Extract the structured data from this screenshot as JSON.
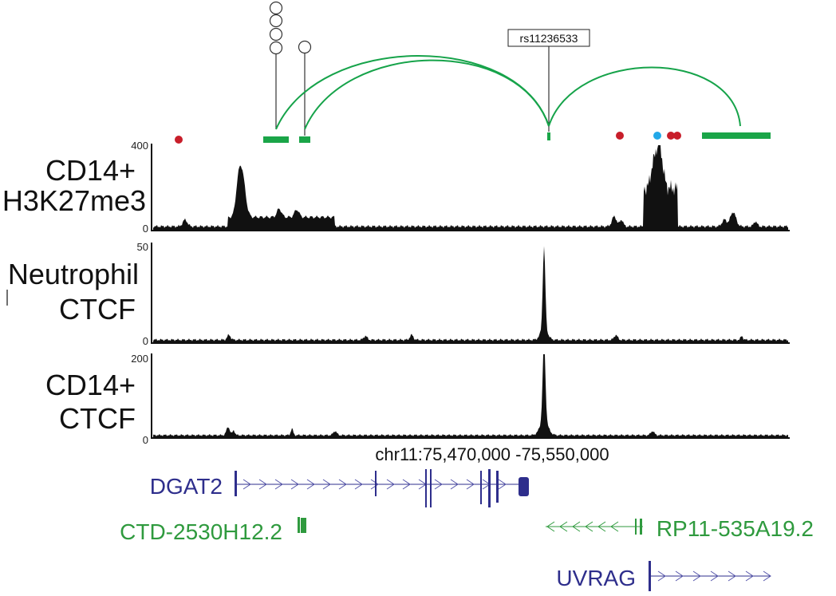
{
  "colors": {
    "loop": "#16a34a",
    "anchor": "#1aa548",
    "red_dot": "#c81e2a",
    "blue_dot": "#22a8e8",
    "signal": "#111111",
    "gene_blue": "#2e2e8c",
    "gene_green": "#2f9a3e"
  },
  "region": "chr11:75,470,000 -75,550,000",
  "snp": {
    "label": "rs11236533"
  },
  "tracks": [
    {
      "label_lines": [
        "CD14+",
        "H3K27me3"
      ],
      "scale_max": "400",
      "scale_min": "0"
    },
    {
      "label_lines": [
        "Neutrophil",
        "CTCF"
      ],
      "scale_max": "50",
      "scale_min": "0"
    },
    {
      "label_lines": [
        "CD14+",
        "CTCF"
      ],
      "scale_max": "200",
      "scale_min": "0"
    }
  ],
  "genes": [
    {
      "name": "DGAT2",
      "strand": "+",
      "color_key": "gene_blue"
    },
    {
      "name": "CTD-2530H12.2",
      "strand": "+",
      "color_key": "gene_green"
    },
    {
      "name": "RP11-535A19.2",
      "strand": "-",
      "color_key": "gene_green"
    },
    {
      "name": "UVRAG",
      "strand": "+",
      "color_key": "gene_blue"
    }
  ]
}
